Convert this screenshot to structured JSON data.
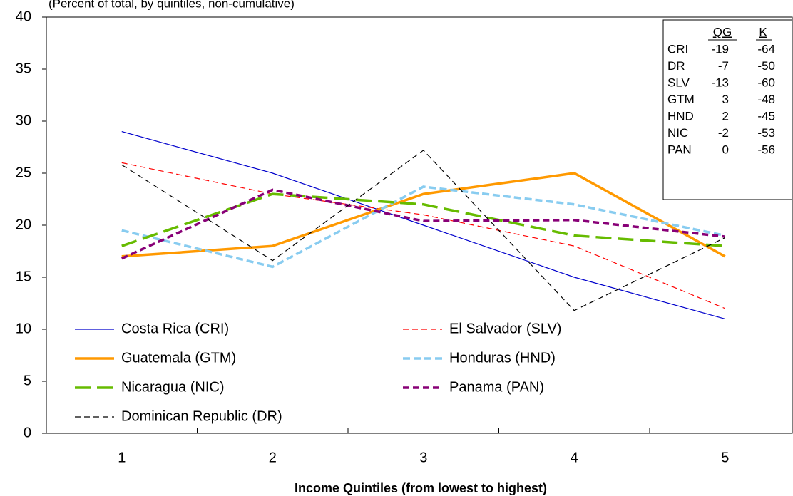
{
  "chart_data": {
    "type": "line",
    "subtitle": "(Percent of total, by quintiles, non-cumulative)",
    "x_label": "Income Quintiles (from lowest to highest)",
    "categories": [
      "1",
      "2",
      "3",
      "4",
      "5"
    ],
    "ylim": [
      0,
      40
    ],
    "yticks": [
      0,
      5,
      10,
      15,
      20,
      25,
      30,
      35,
      40
    ],
    "series": [
      {
        "name": "Costa Rica (CRI)",
        "color": "#0000cc",
        "values": [
          29,
          25,
          20,
          15,
          11
        ]
      },
      {
        "name": "El Salvador (SLV)",
        "color": "#ff0000",
        "values": [
          26,
          23,
          21,
          18,
          12
        ]
      },
      {
        "name": "Guatemala (GTM)",
        "color": "#ff9900",
        "values": [
          17,
          18,
          23,
          25,
          17
        ]
      },
      {
        "name": "Honduras (HND)",
        "color": "#88ccf0",
        "values": [
          19.5,
          16,
          23.7,
          22,
          19
        ]
      },
      {
        "name": "Nicaragua (NIC)",
        "color": "#66bb00",
        "values": [
          18,
          23,
          22,
          19,
          18
        ]
      },
      {
        "name": "Panama (PAN)",
        "color": "#880077",
        "values": [
          16.8,
          23.4,
          20.4,
          20.5,
          18.9
        ]
      },
      {
        "name": "Dominican Republic (DR)",
        "color": "#000000",
        "values": [
          25.8,
          16.6,
          27.2,
          11.8,
          18.8
        ]
      }
    ],
    "table": {
      "columns": [
        "QG",
        "K"
      ],
      "rows": [
        [
          "CRI",
          "-19",
          "-64"
        ],
        [
          "DR",
          "-7",
          "-50"
        ],
        [
          "SLV",
          "-13",
          "-60"
        ],
        [
          "GTM",
          "3",
          "-48"
        ],
        [
          "HND",
          "2",
          "-45"
        ],
        [
          "NIC",
          "-2",
          "-53"
        ],
        [
          "PAN",
          "0",
          "-56"
        ]
      ]
    }
  }
}
